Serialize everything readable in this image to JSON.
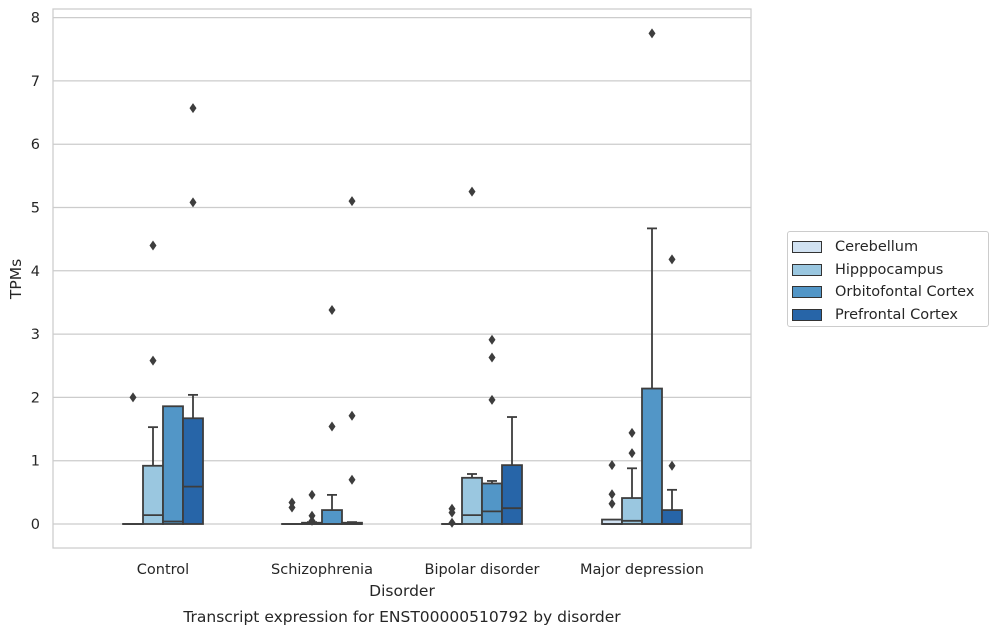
{
  "chart_data": {
    "type": "box",
    "title": "",
    "xlabel": "Disorder",
    "ylabel": "TPMs",
    "caption": "Transcript expression for ENST00000510792 by disorder",
    "ylim": [
      -0.38,
      8.15
    ],
    "yticks": [
      "0",
      "1",
      "2",
      "3",
      "4",
      "5",
      "6",
      "7",
      "8"
    ],
    "grid": "horizontal",
    "legend_position": "right",
    "categories": [
      "Control",
      "Schizophrenia",
      "Bipolar disorder",
      "Major depression"
    ],
    "series": [
      {
        "name": "Cerebellum",
        "color": "#d1e2f2",
        "boxes": [
          {
            "q1": 0,
            "median": 0,
            "q3": 0,
            "whisker_low": 0,
            "whisker_high": 0,
            "outliers": [
              2.0
            ]
          },
          {
            "q1": 0,
            "median": 0,
            "q3": 0,
            "whisker_low": 0,
            "whisker_high": 0,
            "outliers": [
              0.34,
              0.26
            ]
          },
          {
            "q1": 0,
            "median": 0,
            "q3": 0,
            "whisker_low": 0,
            "whisker_high": 0,
            "outliers": [
              0.24,
              0.18,
              0.02
            ]
          },
          {
            "q1": 0,
            "median": 0,
            "q3": 0.07,
            "whisker_low": 0,
            "whisker_high": 0.07,
            "outliers": [
              0.93,
              0.47,
              0.32
            ]
          }
        ]
      },
      {
        "name": "Hipppocampus",
        "color": "#9ac7e0",
        "boxes": [
          {
            "q1": 0,
            "median": 0.14,
            "q3": 0.92,
            "whisker_low": 0,
            "whisker_high": 1.53,
            "outliers": [
              4.4,
              2.58
            ]
          },
          {
            "q1": 0,
            "median": 0,
            "q3": 0.02,
            "whisker_low": 0,
            "whisker_high": 0.03,
            "outliers": [
              0.46,
              0.13,
              0.05
            ]
          },
          {
            "q1": 0,
            "median": 0.14,
            "q3": 0.73,
            "whisker_low": 0,
            "whisker_high": 0.79,
            "outliers": [
              5.25
            ]
          },
          {
            "q1": 0,
            "median": 0.05,
            "q3": 0.41,
            "whisker_low": 0,
            "whisker_high": 0.88,
            "outliers": [
              1.44,
              1.12
            ]
          }
        ]
      },
      {
        "name": "Orbitofontal Cortex",
        "color": "#5296c7",
        "boxes": [
          {
            "q1": 0,
            "median": 0.04,
            "q3": 1.86,
            "whisker_low": 0,
            "whisker_high": 1.86,
            "outliers": []
          },
          {
            "q1": 0,
            "median": 0,
            "q3": 0.22,
            "whisker_low": 0,
            "whisker_high": 0.46,
            "outliers": [
              3.38,
              1.54
            ]
          },
          {
            "q1": 0,
            "median": 0.2,
            "q3": 0.64,
            "whisker_low": 0,
            "whisker_high": 0.68,
            "outliers": [
              2.91,
              2.63,
              1.96
            ]
          },
          {
            "q1": 0,
            "median": 0,
            "q3": 2.14,
            "whisker_low": 0,
            "whisker_high": 4.67,
            "outliers": [
              7.75
            ]
          }
        ]
      },
      {
        "name": "Prefrontal Cortex",
        "color": "#2765a8",
        "boxes": [
          {
            "q1": 0,
            "median": 0.59,
            "q3": 1.67,
            "whisker_low": 0,
            "whisker_high": 2.04,
            "outliers": [
              6.57,
              5.08
            ]
          },
          {
            "q1": 0,
            "median": 0,
            "q3": 0.02,
            "whisker_low": 0,
            "whisker_high": 0.03,
            "outliers": [
              5.1,
              1.71,
              0.7
            ]
          },
          {
            "q1": 0,
            "median": 0.25,
            "q3": 0.93,
            "whisker_low": 0,
            "whisker_high": 1.69,
            "outliers": []
          },
          {
            "q1": 0,
            "median": 0,
            "q3": 0.22,
            "whisker_low": 0,
            "whisker_high": 0.54,
            "outliers": [
              4.18,
              0.92
            ]
          }
        ]
      }
    ]
  }
}
